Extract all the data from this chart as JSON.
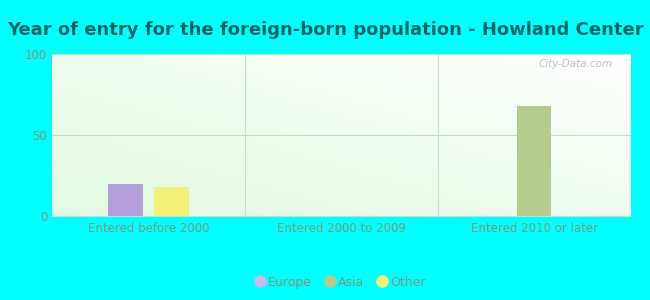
{
  "title": "Year of entry for the foreign-born population - Howland Center",
  "title_fontsize": 13,
  "title_color": "#006666",
  "background_color": "#00FFFF",
  "categories": [
    "Entered before 2000",
    "Entered 2000 to 2009",
    "Entered 2010 or later"
  ],
  "series": {
    "Europe": {
      "values": [
        20,
        0,
        0
      ],
      "color": "#b39ddb"
    },
    "Asia": {
      "values": [
        0,
        0,
        68
      ],
      "color": "#b5cc8e"
    },
    "Other": {
      "values": [
        18,
        0,
        0
      ],
      "color": "#f5f07a"
    }
  },
  "ylim": [
    0,
    100
  ],
  "yticks": [
    0,
    50,
    100
  ],
  "bar_width": 0.18,
  "group_positions": [
    0,
    1,
    2
  ],
  "tick_color": "#7a9a7a",
  "grid_color": "#c8ddc8",
  "legend_marker_colors": {
    "Europe": "#c9b8e8",
    "Asia": "#b5cc8e",
    "Other": "#f5f07a"
  },
  "watermark": "City-Data.com",
  "offsets": {
    "Europe": -0.12,
    "Other": 0.12,
    "Asia": 0.0
  }
}
